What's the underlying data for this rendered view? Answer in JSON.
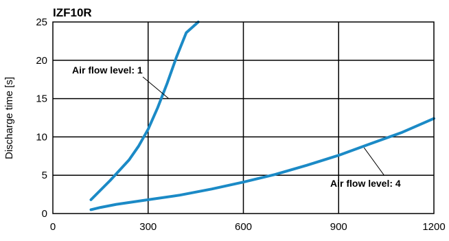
{
  "chart_data": {
    "type": "line",
    "title": "IZF10R",
    "xlabel": "",
    "ylabel": "Discharge time [s]",
    "xlim": [
      0,
      1200
    ],
    "ylim": [
      0,
      25
    ],
    "x_ticks": [
      "0",
      "300",
      "600",
      "900",
      "1200"
    ],
    "y_ticks": [
      "0",
      "5",
      "10",
      "15",
      "20",
      "25"
    ],
    "grid": true,
    "series": [
      {
        "name": "Air flow level: 1",
        "color": "#1b8ac6",
        "points": [
          [
            120,
            1.8
          ],
          [
            180,
            4.3
          ],
          [
            240,
            7.0
          ],
          [
            270,
            8.8
          ],
          [
            300,
            11.0
          ],
          [
            330,
            13.8
          ],
          [
            360,
            17.0
          ],
          [
            390,
            20.5
          ],
          [
            420,
            23.6
          ],
          [
            458,
            25
          ]
        ]
      },
      {
        "name": "Air flow level: 4",
        "color": "#1b8ac6",
        "points": [
          [
            120,
            0.5
          ],
          [
            150,
            0.8
          ],
          [
            200,
            1.2
          ],
          [
            300,
            1.8
          ],
          [
            400,
            2.4
          ],
          [
            500,
            3.2
          ],
          [
            600,
            4.1
          ],
          [
            700,
            5.1
          ],
          [
            800,
            6.3
          ],
          [
            900,
            7.6
          ],
          [
            1000,
            9.1
          ],
          [
            1100,
            10.6
          ],
          [
            1200,
            12.4
          ]
        ]
      }
    ],
    "annotations": [
      {
        "text": "Air flow level: 1",
        "target": [
          365,
          15
        ]
      },
      {
        "text": "Air flow level: 4",
        "target": [
          980,
          8.6
        ]
      }
    ]
  }
}
